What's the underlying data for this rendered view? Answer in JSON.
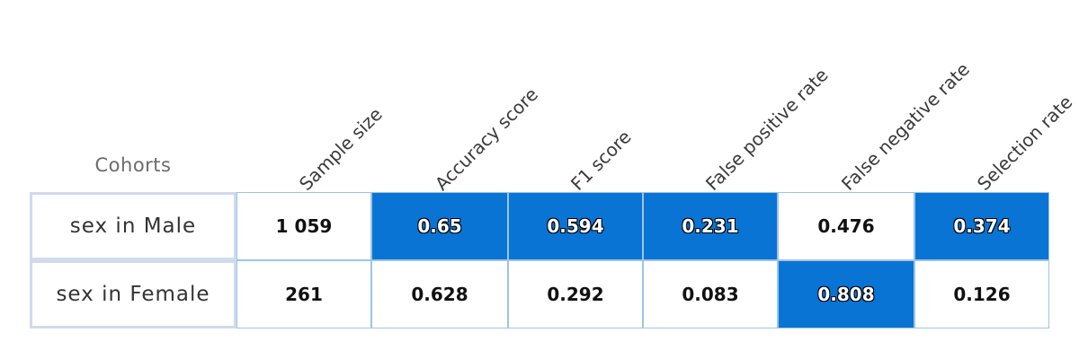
{
  "highlight_color": "#0a74d4",
  "chart_data": {
    "type": "heatmap",
    "row_header": "Cohorts",
    "columns": [
      "Sample size",
      "Accuracy score",
      "F1 score",
      "False positive rate",
      "False negative rate",
      "Selection rate"
    ],
    "rows": [
      {
        "label": "sex in Male",
        "cells": [
          {
            "text": "1 059",
            "value": 1059,
            "highlighted": false
          },
          {
            "text": "0.65",
            "value": 0.65,
            "highlighted": true
          },
          {
            "text": "0.594",
            "value": 0.594,
            "highlighted": true
          },
          {
            "text": "0.231",
            "value": 0.231,
            "highlighted": true
          },
          {
            "text": "0.476",
            "value": 0.476,
            "highlighted": false
          },
          {
            "text": "0.374",
            "value": 0.374,
            "highlighted": true
          }
        ]
      },
      {
        "label": "sex in Female",
        "cells": [
          {
            "text": "261",
            "value": 261,
            "highlighted": false
          },
          {
            "text": "0.628",
            "value": 0.628,
            "highlighted": false
          },
          {
            "text": "0.292",
            "value": 0.292,
            "highlighted": false
          },
          {
            "text": "0.083",
            "value": 0.083,
            "highlighted": false
          },
          {
            "text": "0.808",
            "value": 0.808,
            "highlighted": true
          },
          {
            "text": "0.126",
            "value": 0.126,
            "highlighted": false
          }
        ]
      }
    ]
  }
}
